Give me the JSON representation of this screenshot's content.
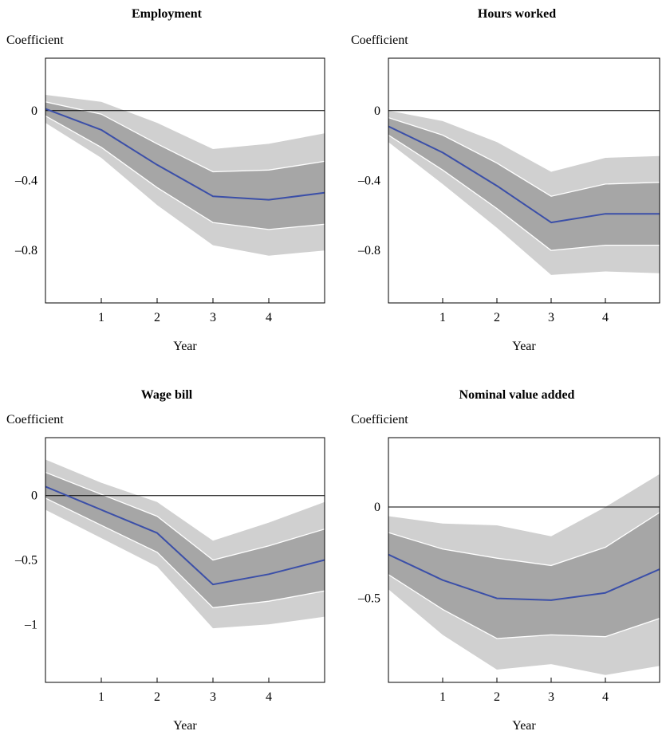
{
  "colors": {
    "outer_band": "#d0d0d0",
    "inner_band": "#a6a6a6",
    "band_edge": "#ffffff",
    "estimate_line": "#3b4fa8",
    "zero_line": "#000000"
  },
  "chart_data": [
    {
      "type": "line",
      "title": "Employment",
      "ylabel": "Coefficient",
      "xlabel": "Year",
      "x": [
        0,
        1,
        2,
        3,
        4,
        5
      ],
      "xlim": [
        0,
        5
      ],
      "ylim": [
        -1.1,
        0.3
      ],
      "xticks": [
        1,
        2,
        3,
        4
      ],
      "xtick_labels": [
        "1",
        "2",
        "3",
        "4"
      ],
      "yticks": [
        0,
        -0.4,
        -0.8
      ],
      "ytick_labels": [
        "0",
        "–0.4",
        "–0.8"
      ],
      "grid": false,
      "zero_line": true,
      "series": [
        {
          "role": "outer_upper",
          "values": [
            0.09,
            0.05,
            -0.07,
            -0.22,
            -0.19,
            -0.13
          ]
        },
        {
          "role": "inner_upper",
          "values": [
            0.05,
            -0.02,
            -0.19,
            -0.35,
            -0.34,
            -0.29
          ]
        },
        {
          "role": "estimate",
          "values": [
            0.01,
            -0.11,
            -0.31,
            -0.49,
            -0.51,
            -0.47
          ]
        },
        {
          "role": "inner_lower",
          "values": [
            -0.03,
            -0.21,
            -0.44,
            -0.64,
            -0.68,
            -0.65
          ]
        },
        {
          "role": "outer_lower",
          "values": [
            -0.07,
            -0.27,
            -0.54,
            -0.77,
            -0.83,
            -0.8
          ]
        }
      ]
    },
    {
      "type": "line",
      "title": "Hours worked",
      "ylabel": "Coefficient",
      "xlabel": "Year",
      "x": [
        0,
        1,
        2,
        3,
        4,
        5
      ],
      "xlim": [
        0,
        5
      ],
      "ylim": [
        -1.1,
        0.3
      ],
      "xticks": [
        1,
        2,
        3,
        4
      ],
      "xtick_labels": [
        "1",
        "2",
        "3",
        "4"
      ],
      "yticks": [
        0,
        -0.4,
        -0.8
      ],
      "ytick_labels": [
        "0",
        "–0.4",
        "–0.8"
      ],
      "grid": false,
      "zero_line": true,
      "series": [
        {
          "role": "outer_upper",
          "values": [
            0.0,
            -0.06,
            -0.18,
            -0.35,
            -0.27,
            -0.26
          ]
        },
        {
          "role": "inner_upper",
          "values": [
            -0.04,
            -0.14,
            -0.3,
            -0.49,
            -0.42,
            -0.41
          ]
        },
        {
          "role": "estimate",
          "values": [
            -0.09,
            -0.24,
            -0.43,
            -0.64,
            -0.59,
            -0.59
          ]
        },
        {
          "role": "inner_lower",
          "values": [
            -0.14,
            -0.34,
            -0.56,
            -0.8,
            -0.77,
            -0.77
          ]
        },
        {
          "role": "outer_lower",
          "values": [
            -0.18,
            -0.42,
            -0.67,
            -0.94,
            -0.92,
            -0.93
          ]
        }
      ]
    },
    {
      "type": "line",
      "title": "Wage bill",
      "ylabel": "Coefficient",
      "xlabel": "Year",
      "x": [
        0,
        1,
        2,
        3,
        4,
        5
      ],
      "xlim": [
        0,
        5
      ],
      "ylim": [
        -1.45,
        0.45
      ],
      "xticks": [
        1,
        2,
        3,
        4
      ],
      "xtick_labels": [
        "1",
        "2",
        "3",
        "4"
      ],
      "yticks": [
        0,
        -0.5,
        -1
      ],
      "ytick_labels": [
        "0",
        "–0.5",
        "–1"
      ],
      "grid": false,
      "zero_line": true,
      "series": [
        {
          "role": "outer_upper",
          "values": [
            0.28,
            0.1,
            -0.05,
            -0.35,
            -0.21,
            -0.05
          ]
        },
        {
          "role": "inner_upper",
          "values": [
            0.18,
            0.01,
            -0.16,
            -0.5,
            -0.39,
            -0.26
          ]
        },
        {
          "role": "estimate",
          "values": [
            0.07,
            -0.11,
            -0.29,
            -0.69,
            -0.61,
            -0.5
          ]
        },
        {
          "role": "inner_lower",
          "values": [
            -0.02,
            -0.23,
            -0.44,
            -0.87,
            -0.82,
            -0.74
          ]
        },
        {
          "role": "outer_lower",
          "values": [
            -0.11,
            -0.33,
            -0.55,
            -1.03,
            -1.0,
            -0.94
          ]
        }
      ]
    },
    {
      "type": "line",
      "title": "Nominal value added",
      "ylabel": "Coefficient",
      "xlabel": "Year",
      "x": [
        0,
        1,
        2,
        3,
        4,
        5
      ],
      "xlim": [
        0,
        5
      ],
      "ylim": [
        -0.96,
        0.38
      ],
      "xticks": [
        1,
        2,
        3,
        4
      ],
      "xtick_labels": [
        "1",
        "2",
        "3",
        "4"
      ],
      "yticks": [
        0,
        -0.5
      ],
      "ytick_labels": [
        "0",
        "–0.5"
      ],
      "grid": false,
      "zero_line": true,
      "series": [
        {
          "role": "outer_upper",
          "values": [
            -0.05,
            -0.09,
            -0.1,
            -0.16,
            0.0,
            0.18
          ]
        },
        {
          "role": "inner_upper",
          "values": [
            -0.14,
            -0.23,
            -0.28,
            -0.32,
            -0.22,
            -0.03
          ]
        },
        {
          "role": "estimate",
          "values": [
            -0.26,
            -0.4,
            -0.5,
            -0.51,
            -0.47,
            -0.34
          ]
        },
        {
          "role": "inner_lower",
          "values": [
            -0.37,
            -0.56,
            -0.72,
            -0.7,
            -0.71,
            -0.61
          ]
        },
        {
          "role": "outer_lower",
          "values": [
            -0.45,
            -0.7,
            -0.89,
            -0.86,
            -0.92,
            -0.87
          ]
        }
      ]
    }
  ]
}
